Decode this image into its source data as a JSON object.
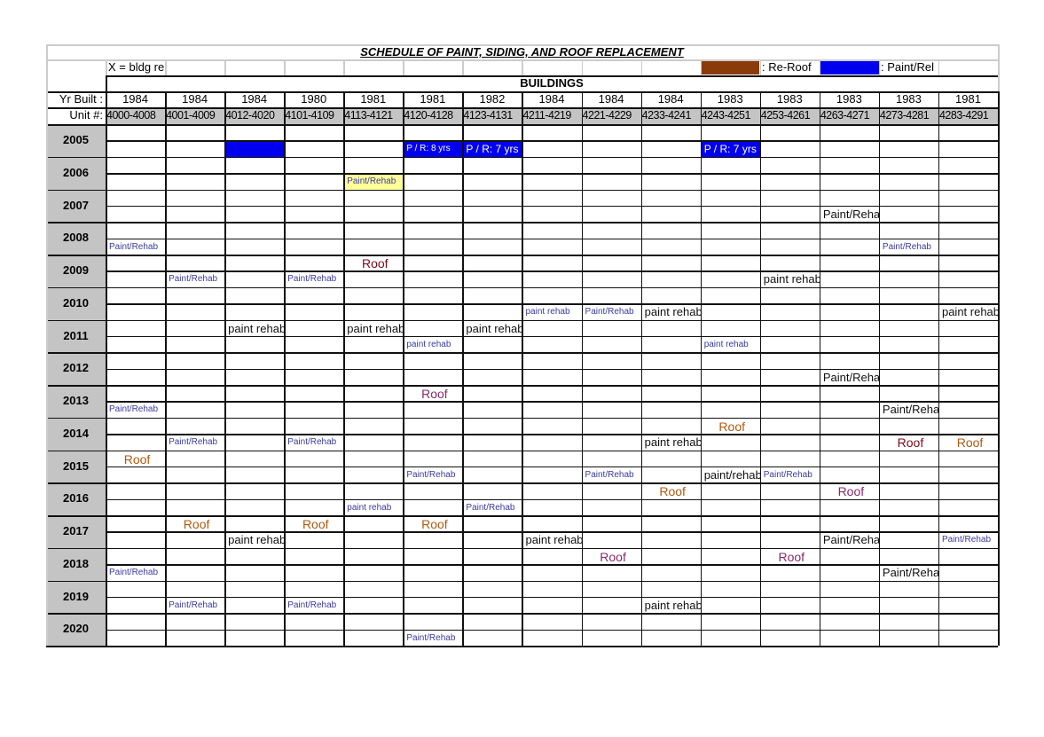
{
  "title": "SCHEDULE OF PAINT, SIDING, AND ROOF REPLACEMENT",
  "note": "X = bldg re",
  "legend": [
    {
      "label": ": Re-Roof",
      "color": "#8b3a0a"
    },
    {
      "label": ": Paint/Rel",
      "color": "#0000ee"
    }
  ],
  "buildings_label": "BUILDINGS",
  "yr_built_label": "Yr  Built :",
  "unit_label": "Unit #:",
  "columns": [
    {
      "yr": "1984",
      "unit": "4000-4008"
    },
    {
      "yr": "1984",
      "unit": "4001-4009"
    },
    {
      "yr": "1984",
      "unit": "4012-4020"
    },
    {
      "yr": "1980",
      "unit": "4101-4109"
    },
    {
      "yr": "1981",
      "unit": "4113-4121"
    },
    {
      "yr": "1981",
      "unit": "4120-4128"
    },
    {
      "yr": "1982",
      "unit": "4123-4131"
    },
    {
      "yr": "1984",
      "unit": "4211-4219"
    },
    {
      "yr": "1984",
      "unit": "4221-4229"
    },
    {
      "yr": "1984",
      "unit": "4233-4241"
    },
    {
      "yr": "1983",
      "unit": "4243-4251"
    },
    {
      "yr": "1983",
      "unit": "4253-4261"
    },
    {
      "yr": "1983",
      "unit": "4263-4271"
    },
    {
      "yr": "1983",
      "unit": "4273-4281"
    },
    {
      "yr": "1981",
      "unit": "4283-4291"
    }
  ],
  "years": [
    "2005",
    "2006",
    "2007",
    "2008",
    "2009",
    "2010",
    "2011",
    "2012",
    "2013",
    "2014",
    "2015",
    "2016",
    "2017",
    "2018",
    "2019",
    "2020"
  ],
  "entries": [
    {
      "year": "2005",
      "sub": 1,
      "col": 2,
      "text": "",
      "style": "bluefill"
    },
    {
      "year": "2005",
      "sub": 1,
      "col": 5,
      "text": "P / R: 8 yrs",
      "style": "bluefill small-w"
    },
    {
      "year": "2005",
      "sub": 1,
      "col": 6,
      "text": "P / R: 7 yrs",
      "style": "bluefill"
    },
    {
      "year": "2005",
      "sub": 1,
      "col": 10,
      "text": "P / R: 7 yrs",
      "style": "bluefill"
    },
    {
      "year": "2006",
      "sub": 1,
      "col": 4,
      "text": "Paint/Rehab",
      "style": "small yellowfill"
    },
    {
      "year": "2007",
      "sub": 1,
      "col": 12,
      "text": "Paint/Rehab",
      "style": "black"
    },
    {
      "year": "2008",
      "sub": 1,
      "col": 0,
      "text": "Paint/Rehab",
      "style": "small"
    },
    {
      "year": "2008",
      "sub": 1,
      "col": 13,
      "text": "Paint/Rehab",
      "style": "small"
    },
    {
      "year": "2009",
      "sub": 0,
      "col": 4,
      "text": "Roof",
      "style": "roof2"
    },
    {
      "year": "2009",
      "sub": 1,
      "col": 1,
      "text": "Paint/Rehab",
      "style": "small"
    },
    {
      "year": "2009",
      "sub": 1,
      "col": 3,
      "text": "Paint/Rehab",
      "style": "small"
    },
    {
      "year": "2009",
      "sub": 1,
      "col": 11,
      "text": "paint rehab",
      "style": "black"
    },
    {
      "year": "2010",
      "sub": 1,
      "col": 7,
      "text": "paint rehab",
      "style": "small"
    },
    {
      "year": "2010",
      "sub": 1,
      "col": 8,
      "text": "Paint/Rehab",
      "style": "small"
    },
    {
      "year": "2010",
      "sub": 1,
      "col": 9,
      "text": "paint rehab",
      "style": "black"
    },
    {
      "year": "2010",
      "sub": 1,
      "col": 14,
      "text": "paint rehab",
      "style": "black"
    },
    {
      "year": "2011",
      "sub": 0,
      "col": 2,
      "text": "paint rehab",
      "style": "black"
    },
    {
      "year": "2011",
      "sub": 0,
      "col": 4,
      "text": "paint rehab",
      "style": "black"
    },
    {
      "year": "2011",
      "sub": 0,
      "col": 6,
      "text": "paint rehab",
      "style": "black"
    },
    {
      "year": "2011",
      "sub": 1,
      "col": 5,
      "text": "paint rehab",
      "style": "small"
    },
    {
      "year": "2011",
      "sub": 1,
      "col": 10,
      "text": "paint rehab",
      "style": "small"
    },
    {
      "year": "2012",
      "sub": 1,
      "col": 12,
      "text": "Paint/Rehab",
      "style": "black"
    },
    {
      "year": "2013",
      "sub": 0,
      "col": 5,
      "text": "Roof",
      "style": "roof3"
    },
    {
      "year": "2013",
      "sub": 1,
      "col": 0,
      "text": "Paint/Rehab",
      "style": "small"
    },
    {
      "year": "2013",
      "sub": 1,
      "col": 13,
      "text": "Paint/Rehab",
      "style": "black"
    },
    {
      "year": "2014",
      "sub": 0,
      "col": 10,
      "text": "Roof",
      "style": "roof1"
    },
    {
      "year": "2014",
      "sub": 1,
      "col": 1,
      "text": "Paint/Rehab",
      "style": "small"
    },
    {
      "year": "2014",
      "sub": 1,
      "col": 3,
      "text": "Paint/Rehab",
      "style": "small"
    },
    {
      "year": "2014",
      "sub": 1,
      "col": 9,
      "text": "paint rehab",
      "style": "black"
    },
    {
      "year": "2014",
      "sub": 1,
      "col": 13,
      "text": "Roof",
      "style": "roof2"
    },
    {
      "year": "2014",
      "sub": 1,
      "col": 14,
      "text": "Roof",
      "style": "roof1"
    },
    {
      "year": "2015",
      "sub": 0,
      "col": 0,
      "text": "Roof",
      "style": "roof1"
    },
    {
      "year": "2015",
      "sub": 1,
      "col": 5,
      "text": "Paint/Rehab",
      "style": "small"
    },
    {
      "year": "2015",
      "sub": 1,
      "col": 8,
      "text": "Paint/Rehab",
      "style": "small"
    },
    {
      "year": "2015",
      "sub": 1,
      "col": 10,
      "text": "paint/rehab",
      "style": "black"
    },
    {
      "year": "2015",
      "sub": 1,
      "col": 11,
      "text": "Paint/Rehab",
      "style": "small"
    },
    {
      "year": "2016",
      "sub": 0,
      "col": 9,
      "text": "Roof",
      "style": "roof1"
    },
    {
      "year": "2016",
      "sub": 0,
      "col": 12,
      "text": "Roof",
      "style": "roof3"
    },
    {
      "year": "2016",
      "sub": 1,
      "col": 4,
      "text": "paint rehab",
      "style": "small"
    },
    {
      "year": "2016",
      "sub": 1,
      "col": 6,
      "text": "Paint/Rehab",
      "style": "small"
    },
    {
      "year": "2017",
      "sub": 0,
      "col": 1,
      "text": "Roof",
      "style": "roof1"
    },
    {
      "year": "2017",
      "sub": 0,
      "col": 3,
      "text": "Roof",
      "style": "roof1"
    },
    {
      "year": "2017",
      "sub": 0,
      "col": 5,
      "text": "Roof",
      "style": "roof1"
    },
    {
      "year": "2017",
      "sub": 1,
      "col": 2,
      "text": "paint rehab",
      "style": "black"
    },
    {
      "year": "2017",
      "sub": 1,
      "col": 7,
      "text": "paint rehab",
      "style": "black"
    },
    {
      "year": "2017",
      "sub": 1,
      "col": 12,
      "text": "Paint/Rehab",
      "style": "black"
    },
    {
      "year": "2017",
      "sub": 1,
      "col": 14,
      "text": "Paint/Rehab",
      "style": "small"
    },
    {
      "year": "2018",
      "sub": 0,
      "col": 8,
      "text": "Roof",
      "style": "roof3"
    },
    {
      "year": "2018",
      "sub": 0,
      "col": 11,
      "text": "Roof",
      "style": "roof3"
    },
    {
      "year": "2018",
      "sub": 1,
      "col": 0,
      "text": "Paint/Rehab",
      "style": "small"
    },
    {
      "year": "2018",
      "sub": 1,
      "col": 13,
      "text": "Paint/Rehab",
      "style": "black"
    },
    {
      "year": "2019",
      "sub": 1,
      "col": 1,
      "text": "Paint/Rehab",
      "style": "small"
    },
    {
      "year": "2019",
      "sub": 1,
      "col": 3,
      "text": "Paint/Rehab",
      "style": "small"
    },
    {
      "year": "2019",
      "sub": 1,
      "col": 9,
      "text": "paint rehab",
      "style": "black"
    },
    {
      "year": "2020",
      "sub": 1,
      "col": 5,
      "text": "Paint/Rehab",
      "style": "small"
    }
  ]
}
